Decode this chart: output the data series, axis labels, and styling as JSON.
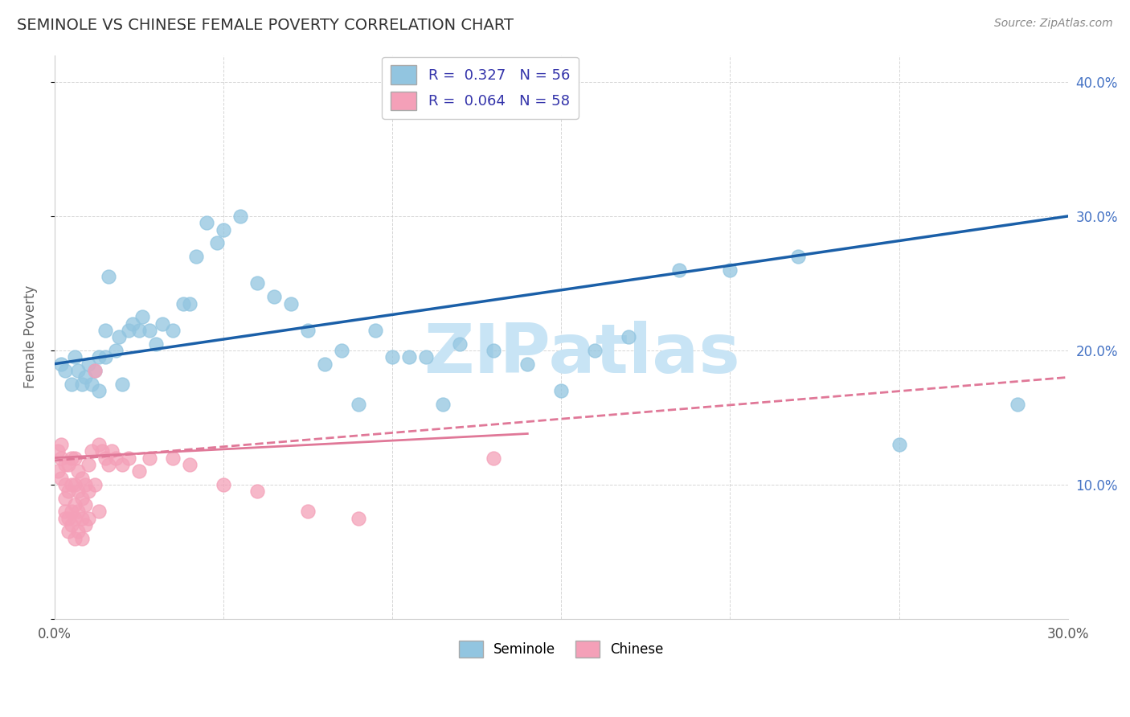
{
  "title": "SEMINOLE VS CHINESE FEMALE POVERTY CORRELATION CHART",
  "source": "Source: ZipAtlas.com",
  "ylabel": "Female Poverty",
  "xlim": [
    0.0,
    0.3
  ],
  "ylim": [
    0.0,
    0.42
  ],
  "seminole_R": 0.327,
  "seminole_N": 56,
  "chinese_R": 0.064,
  "chinese_N": 58,
  "seminole_color": "#92c5e0",
  "chinese_color": "#f4a0b8",
  "seminole_line_color": "#1a5fa8",
  "chinese_line_color": "#e07898",
  "watermark": "ZIPatlas",
  "watermark_color": "#c8e4f5",
  "seminole_x": [
    0.002,
    0.003,
    0.005,
    0.006,
    0.007,
    0.008,
    0.009,
    0.01,
    0.011,
    0.012,
    0.013,
    0.013,
    0.015,
    0.015,
    0.016,
    0.018,
    0.019,
    0.02,
    0.022,
    0.023,
    0.025,
    0.026,
    0.028,
    0.03,
    0.032,
    0.035,
    0.038,
    0.04,
    0.042,
    0.045,
    0.048,
    0.05,
    0.055,
    0.06,
    0.065,
    0.07,
    0.075,
    0.08,
    0.085,
    0.09,
    0.095,
    0.1,
    0.105,
    0.11,
    0.115,
    0.12,
    0.13,
    0.14,
    0.15,
    0.16,
    0.17,
    0.185,
    0.2,
    0.22,
    0.25,
    0.285
  ],
  "seminole_y": [
    0.19,
    0.185,
    0.175,
    0.195,
    0.185,
    0.175,
    0.18,
    0.19,
    0.175,
    0.185,
    0.17,
    0.195,
    0.195,
    0.215,
    0.255,
    0.2,
    0.21,
    0.175,
    0.215,
    0.22,
    0.215,
    0.225,
    0.215,
    0.205,
    0.22,
    0.215,
    0.235,
    0.235,
    0.27,
    0.295,
    0.28,
    0.29,
    0.3,
    0.25,
    0.24,
    0.235,
    0.215,
    0.19,
    0.2,
    0.16,
    0.215,
    0.195,
    0.195,
    0.195,
    0.16,
    0.205,
    0.2,
    0.19,
    0.17,
    0.2,
    0.21,
    0.26,
    0.26,
    0.27,
    0.13,
    0.16
  ],
  "chinese_x": [
    0.001,
    0.001,
    0.002,
    0.002,
    0.002,
    0.003,
    0.003,
    0.003,
    0.003,
    0.003,
    0.004,
    0.004,
    0.004,
    0.004,
    0.005,
    0.005,
    0.005,
    0.005,
    0.006,
    0.006,
    0.006,
    0.006,
    0.006,
    0.007,
    0.007,
    0.007,
    0.007,
    0.008,
    0.008,
    0.008,
    0.008,
    0.009,
    0.009,
    0.009,
    0.01,
    0.01,
    0.01,
    0.011,
    0.012,
    0.012,
    0.013,
    0.013,
    0.014,
    0.015,
    0.016,
    0.017,
    0.018,
    0.02,
    0.022,
    0.025,
    0.028,
    0.035,
    0.04,
    0.05,
    0.06,
    0.075,
    0.09,
    0.13
  ],
  "chinese_y": [
    0.125,
    0.11,
    0.12,
    0.13,
    0.105,
    0.115,
    0.1,
    0.09,
    0.08,
    0.075,
    0.115,
    0.095,
    0.075,
    0.065,
    0.12,
    0.1,
    0.08,
    0.07,
    0.12,
    0.1,
    0.085,
    0.075,
    0.06,
    0.11,
    0.095,
    0.08,
    0.065,
    0.105,
    0.09,
    0.075,
    0.06,
    0.1,
    0.085,
    0.07,
    0.115,
    0.095,
    0.075,
    0.125,
    0.185,
    0.1,
    0.13,
    0.08,
    0.125,
    0.12,
    0.115,
    0.125,
    0.12,
    0.115,
    0.12,
    0.11,
    0.12,
    0.12,
    0.115,
    0.1,
    0.095,
    0.08,
    0.075,
    0.12
  ]
}
